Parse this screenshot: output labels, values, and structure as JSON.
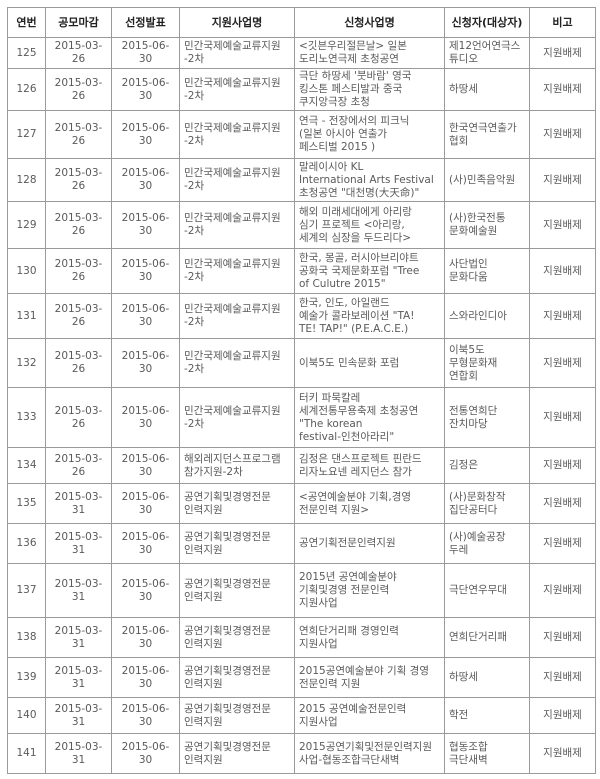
{
  "headers": [
    "연번",
    "공모마감",
    "선정발표",
    "지원사업명",
    "신청사업명",
    "신청자(대상자)",
    "비고"
  ],
  "rows": [
    {
      "no": "125",
      "deadline": "2015-03-26",
      "announce": "2015-06-30",
      "program": "민간국제예술교류지원\n-2차",
      "project": "<깃븐우리절믄날> 일본\n도리노연극제 초청공연",
      "applicant": "제12언어연극스\n튜디오",
      "note": "지원배제",
      "h": 31
    },
    {
      "no": "126",
      "deadline": "2015-03-26",
      "announce": "2015-06-30",
      "program": "민간국제예술교류지원\n-2차",
      "project": "극단 하땅세 '붓바람' 영국\n킹스톤 페스티발과 중국\n쿠지앙극장 초청",
      "applicant": "하땅세",
      "note": "지원배제",
      "h": 42
    },
    {
      "no": "127",
      "deadline": "2015-03-26",
      "announce": "2015-06-30",
      "program": "민간국제예술교류지원\n-2차",
      "project": "연극 - 전장에서의 피크닉\n(일본 아시아 연출가\n페스티벌 2015 )",
      "applicant": "한국연극연출가\n협회",
      "note": "지원배제",
      "h": 48
    },
    {
      "no": "128",
      "deadline": "2015-03-26",
      "announce": "2015-06-30",
      "program": "민간국제예술교류지원\n-2차",
      "project": "말레이시아 KL\nInternational Arts Festival\n초청공연 \"대천명(大天命)\"",
      "applicant": "(사)민족음악원",
      "note": "지원배제",
      "h": 43
    },
    {
      "no": "129",
      "deadline": "2015-03-26",
      "announce": "2015-06-30",
      "program": "민간국제예술교류지원\n-2차",
      "project": "해외 미래세대에게 아리랑\n심기 프로젝트 <아리랑,\n세계의 심장을 두드리다>",
      "applicant": "(사)한국전통\n문화예술원",
      "note": "지원배제",
      "h": 47
    },
    {
      "no": "130",
      "deadline": "2015-03-26",
      "announce": "2015-06-30",
      "program": "민간국제예술교류지원\n-2차",
      "project": "한국, 몽골, 러시아브리야트\n공화국 국제문화포럼 \"Tree\nof Culutre 2015\"",
      "applicant": "사단법인\n문화다움",
      "note": "지원배제",
      "h": 45
    },
    {
      "no": "131",
      "deadline": "2015-03-26",
      "announce": "2015-06-30",
      "program": "민간국제예술교류지원\n-2차",
      "project": "한국, 인도, 아일랜드\n예술가 콜라보레이션 \"TA!\nTE! TAP!\" (P.E.A.C.E.)",
      "applicant": "스와라인디아",
      "note": "지원배제",
      "h": 45
    },
    {
      "no": "132",
      "deadline": "2015-03-26",
      "announce": "2015-06-30",
      "program": "민간국제예술교류지원\n-2차",
      "project": "이북5도 민속문화 포럼",
      "applicant": "이북5도\n무형문화재\n연합회",
      "note": "지원배제",
      "h": 49
    },
    {
      "no": "133",
      "deadline": "2015-03-26",
      "announce": "2015-06-30",
      "program": "민간국제예술교류지원\n-2차",
      "project": "터키 파묵칼레\n세계전통무용축제 초청공연\n \"The korean\nfestival-인천아라리\"",
      "applicant": "전통연희단\n잔치마당",
      "note": "지원배제",
      "h": 60
    },
    {
      "no": "134",
      "deadline": "2015-03-26",
      "announce": "2015-06-30",
      "program": "해외레지던스프로그램\n참가지원-2차",
      "project": "김정은 댄스프로젝트 핀란드\n리자노요넨 레지던스 참가",
      "applicant": "김정은",
      "note": "지원배제",
      "h": 36
    },
    {
      "no": "135",
      "deadline": "2015-03-31",
      "announce": "2015-06-30",
      "program": "공연기획및경영전문\n인력지원",
      "project": "<공연예술분야 기획,경영\n전문인력 지원>",
      "applicant": "(사)문화창작\n집단공터다",
      "note": "지원배제",
      "h": 40
    },
    {
      "no": "136",
      "deadline": "2015-03-31",
      "announce": "2015-06-30",
      "program": "공연기획및경영전문\n인력지원",
      "project": "공연기획전문인력지원",
      "applicant": "(사)예술공장\n두레",
      "note": "지원배제",
      "h": 40
    },
    {
      "no": "137",
      "deadline": "2015-03-31",
      "announce": "2015-06-30",
      "program": "공연기획및경영전문\n인력지원",
      "project": "2015년  공연예술분야\n기획및경영 전문인력\n지원사업",
      "applicant": "극단연우무대",
      "note": "지원배제",
      "h": 54
    },
    {
      "no": "138",
      "deadline": "2015-03-31",
      "announce": "2015-06-30",
      "program": "공연기획및경영전문\n인력지원",
      "project": "연희단거리패 경영인력\n지원사업",
      "applicant": "연희단거리패",
      "note": "지원배제",
      "h": 40
    },
    {
      "no": "139",
      "deadline": "2015-03-31",
      "announce": "2015-06-30",
      "program": "공연기획및경영전문\n인력지원",
      "project": "2015공연예술분야 기획 경영\n전문인력 지원",
      "applicant": "하땅세",
      "note": "지원배제",
      "h": 40
    },
    {
      "no": "140",
      "deadline": "2015-03-31",
      "announce": "2015-06-30",
      "program": "공연기획및경영전문\n인력지원",
      "project": "2015 공연예술전문인력\n지원사업",
      "applicant": "학전",
      "note": "지원배제",
      "h": 36
    },
    {
      "no": "141",
      "deadline": "2015-03-31",
      "announce": "2015-06-30",
      "program": "공연기획및경영전문\n인력지원",
      "project": "2015공연기획및전문인력지원\n사업-협동조합극단새벽",
      "applicant": "협동조합\n극단새벽",
      "note": "지원배제",
      "h": 40
    }
  ]
}
